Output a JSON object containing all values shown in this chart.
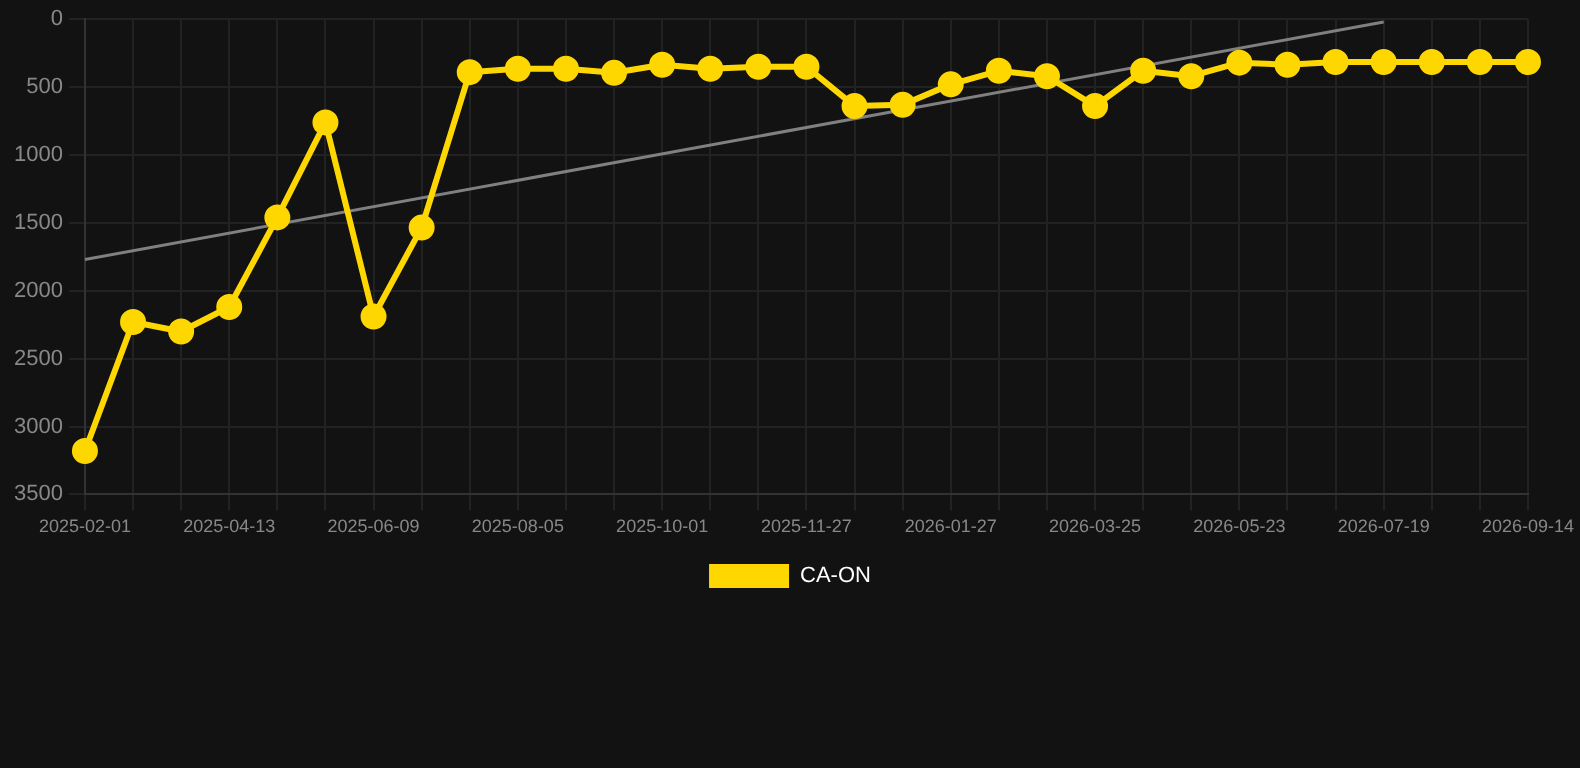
{
  "chart_data": {
    "type": "line",
    "categories": [
      "2025-02-01",
      null,
      null,
      "2025-04-13",
      null,
      null,
      "2025-06-09",
      null,
      null,
      "2025-08-05",
      null,
      null,
      "2025-10-01",
      null,
      null,
      "2025-11-27",
      null,
      null,
      "2026-01-27",
      null,
      null,
      "2026-03-25",
      null,
      null,
      "2026-05-23",
      null,
      null,
      "2026-07-19",
      null,
      null,
      "2026-09-14"
    ],
    "series": [
      {
        "name": "CA-ON",
        "color": "#ffd700",
        "marker": "circle",
        "values": [
          3180,
          2230,
          2300,
          2120,
          1460,
          760,
          2190,
          1535,
          390,
          365,
          365,
          395,
          335,
          365,
          350,
          350,
          640,
          630,
          480,
          380,
          420,
          640,
          380,
          420,
          320,
          335,
          315,
          315,
          315,
          315,
          315
        ]
      },
      {
        "type": "line",
        "color": "#808080",
        "marker": "none",
        "values": [
          1770,
          null,
          null,
          null,
          null,
          null,
          null,
          null,
          null,
          null,
          null,
          null,
          null,
          null,
          null,
          null,
          null,
          null,
          null,
          null,
          null,
          null,
          null,
          null,
          null,
          null,
          null,
          20,
          null,
          null,
          null
        ]
      }
    ],
    "ylim": [
      3500,
      0
    ],
    "yticks": [
      0,
      500,
      1000,
      1500,
      2000,
      2500,
      3000,
      3500
    ],
    "grid": true,
    "legend": "bottom"
  }
}
